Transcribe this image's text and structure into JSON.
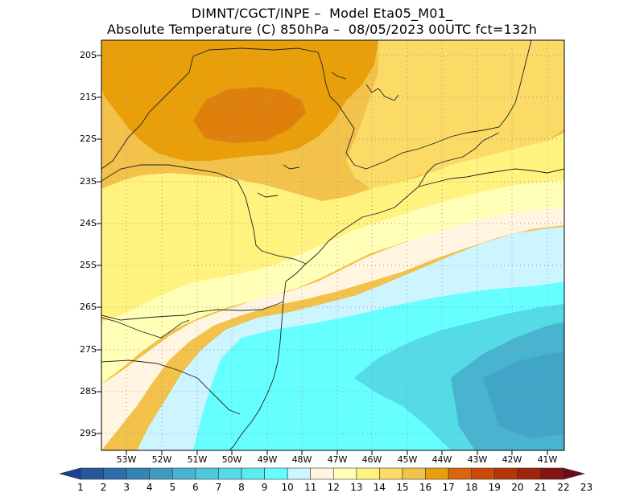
{
  "title": {
    "line1": "DIMNT/CGCT/INPE –  Model Eta05_M01_",
    "line2": "Absolute Temperature (C) 850hPa –  08/05/2023 00UTC fct=132h"
  },
  "map": {
    "lat_labels": [
      "20S",
      "21S",
      "22S",
      "23S",
      "24S",
      "25S",
      "26S",
      "27S",
      "28S",
      "29S"
    ],
    "lon_labels": [
      "53W",
      "52W",
      "51W",
      "50W",
      "49W",
      "48W",
      "47W",
      "46W",
      "45W",
      "44W",
      "43W",
      "42W",
      "41W"
    ]
  },
  "colorbar": {
    "labels": [
      "1",
      "2",
      "3",
      "4",
      "5",
      "6",
      "7",
      "8",
      "9",
      "10",
      "11",
      "12",
      "13",
      "14",
      "15",
      "16",
      "17",
      "18",
      "19",
      "20",
      "21",
      "22",
      "23"
    ],
    "colors": [
      "#1e3f8f",
      "#26569d",
      "#2d6ba9",
      "#3584b6",
      "#3d9bc1",
      "#48b4cf",
      "#4fc8dc",
      "#55dbe6",
      "#5cebf0",
      "#66ffff",
      "#ccf5ff",
      "#fff5e1",
      "#ffffb8",
      "#fff27f",
      "#fbdb66",
      "#f2c24a",
      "#e89f0a",
      "#d9660e",
      "#cb4a08",
      "#b63607",
      "#a0240c",
      "#851417",
      "#6e0a1b"
    ]
  },
  "palette": {
    "cyan": "#66ffff",
    "lightcyan": "#ccf5ff",
    "cream": "#fff5e1",
    "paleyellow": "#ffffb8",
    "yellow": "#fff27f",
    "lightorange": "#fbdb66",
    "midorange": "#f2c24a",
    "orange": "#e89f0a",
    "deeporange": "#d9660e",
    "blue": "#55dbe6",
    "deepblue": "#48b4cf"
  }
}
